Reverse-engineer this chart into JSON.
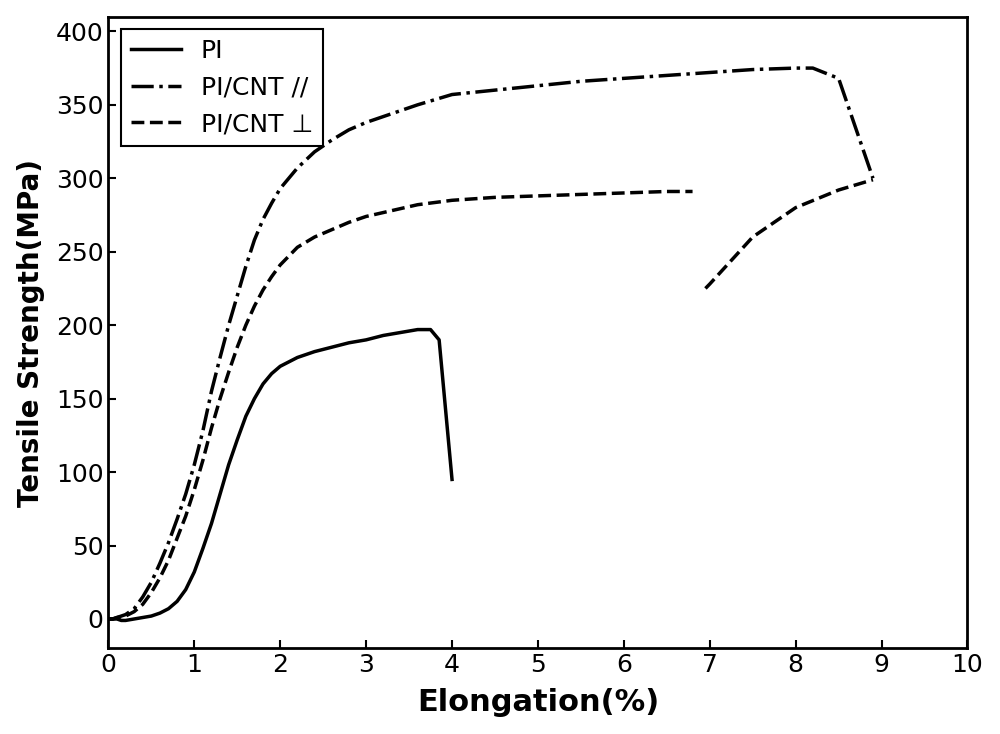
{
  "title": "",
  "xlabel": "Elongation(%)",
  "ylabel": "Tensile Strength(MPa)",
  "xlim": [
    0,
    10
  ],
  "ylim": [
    -20,
    410
  ],
  "yticks": [
    0,
    50,
    100,
    150,
    200,
    250,
    300,
    350,
    400
  ],
  "xticks": [
    0,
    1,
    2,
    3,
    4,
    5,
    6,
    7,
    8,
    9,
    10
  ],
  "background_color": "#ffffff",
  "pi_x": [
    0,
    0.05,
    0.1,
    0.15,
    0.2,
    0.3,
    0.4,
    0.5,
    0.6,
    0.7,
    0.8,
    0.9,
    1.0,
    1.1,
    1.2,
    1.3,
    1.4,
    1.5,
    1.6,
    1.7,
    1.8,
    1.9,
    2.0,
    2.2,
    2.4,
    2.6,
    2.8,
    3.0,
    3.2,
    3.4,
    3.6,
    3.75,
    3.85,
    4.0
  ],
  "pi_y": [
    0,
    0,
    0,
    -1,
    -1,
    0,
    1,
    2,
    4,
    7,
    12,
    20,
    32,
    48,
    65,
    85,
    105,
    122,
    138,
    150,
    160,
    167,
    172,
    178,
    182,
    185,
    188,
    190,
    193,
    195,
    197,
    197,
    190,
    95
  ],
  "cnt_par_x": [
    0,
    0.05,
    0.1,
    0.2,
    0.3,
    0.4,
    0.5,
    0.6,
    0.7,
    0.8,
    0.9,
    1.0,
    1.1,
    1.2,
    1.3,
    1.4,
    1.5,
    1.6,
    1.7,
    1.8,
    1.9,
    2.0,
    2.2,
    2.4,
    2.6,
    2.8,
    3.0,
    3.3,
    3.6,
    4.0,
    4.5,
    5.0,
    5.5,
    6.0,
    6.5,
    7.0,
    7.5,
    8.0,
    8.2,
    8.5,
    8.9
  ],
  "cnt_par_y": [
    0,
    0,
    1,
    3,
    7,
    15,
    25,
    38,
    52,
    68,
    85,
    105,
    128,
    155,
    178,
    200,
    220,
    240,
    258,
    272,
    283,
    293,
    307,
    318,
    326,
    333,
    338,
    344,
    350,
    357,
    360,
    363,
    366,
    368,
    370,
    372,
    374,
    375,
    375,
    368,
    300
  ],
  "cnt_perp_x": [
    0,
    0.05,
    0.1,
    0.2,
    0.3,
    0.4,
    0.5,
    0.6,
    0.7,
    0.8,
    0.9,
    1.0,
    1.1,
    1.2,
    1.3,
    1.4,
    1.5,
    1.6,
    1.7,
    1.8,
    1.9,
    2.0,
    2.2,
    2.4,
    2.6,
    2.8,
    3.0,
    3.3,
    3.6,
    4.0,
    4.5,
    5.0,
    5.5,
    6.0,
    6.5,
    6.8
  ],
  "cnt_perp_y": [
    0,
    0,
    1,
    2,
    5,
    10,
    18,
    28,
    40,
    55,
    70,
    88,
    108,
    130,
    150,
    168,
    185,
    200,
    213,
    224,
    233,
    241,
    253,
    260,
    265,
    270,
    274,
    278,
    282,
    285,
    287,
    288,
    289,
    290,
    291,
    291
  ],
  "cnt_perp_x2": [
    6.95,
    7.0,
    7.5,
    8.0,
    8.5,
    8.9
  ],
  "cnt_perp_y2": [
    225,
    228,
    260,
    280,
    292,
    299
  ],
  "line_color": "#000000",
  "xlabel_fontsize": 22,
  "ylabel_fontsize": 20,
  "tick_fontsize": 18,
  "legend_fontsize": 18,
  "linewidth": 2.5
}
